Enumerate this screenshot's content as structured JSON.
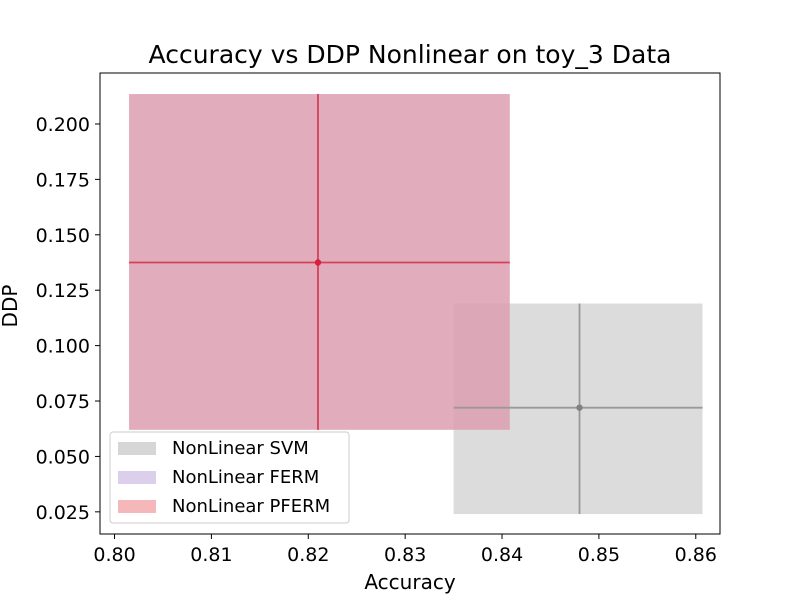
{
  "chart_data": {
    "type": "scatter",
    "title": "Accuracy vs DDP Nonlinear on toy_3 Data",
    "xlabel": "Accuracy",
    "ylabel": "DDP",
    "xlim": [
      0.7985,
      0.8625
    ],
    "ylim": [
      0.015,
      0.223
    ],
    "xticks": [
      0.8,
      0.81,
      0.82,
      0.83,
      0.84,
      0.85,
      0.86
    ],
    "xtick_labels": [
      "0.80",
      "0.81",
      "0.82",
      "0.83",
      "0.84",
      "0.85",
      "0.86"
    ],
    "yticks": [
      0.025,
      0.05,
      0.075,
      0.1,
      0.125,
      0.15,
      0.175,
      0.2
    ],
    "ytick_labels": [
      "0.025",
      "0.050",
      "0.075",
      "0.100",
      "0.125",
      "0.150",
      "0.175",
      "0.200"
    ],
    "grid": false,
    "legend_position": "lower-left",
    "series": [
      {
        "name": "NonLinear SVM",
        "x": 0.848,
        "y": 0.072,
        "x_range": [
          0.835,
          0.8607
        ],
        "y_range": [
          0.024,
          0.119
        ],
        "point_color": "#808080",
        "line_color": "#999999",
        "box_color": "#d6d6d6",
        "legend_color": "#d6d6d6"
      },
      {
        "name": "NonLinear FERM",
        "legend_color": "#dccfec"
      },
      {
        "name": "NonLinear PFERM",
        "x": 0.821,
        "y": 0.1375,
        "x_range": [
          0.8015,
          0.8408
        ],
        "y_range": [
          0.062,
          0.2135
        ],
        "point_color": "#d6203e",
        "line_color": "#d6405a",
        "box_color": "#dc9eb0",
        "legend_color": "#f4b8ba"
      }
    ]
  }
}
